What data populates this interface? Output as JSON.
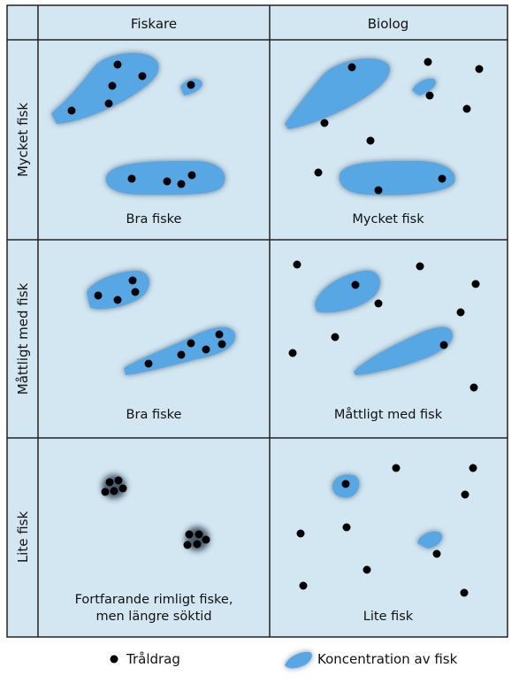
{
  "columns": [
    "Fiskare",
    "Biolog"
  ],
  "rows": [
    "Mycket fisk",
    "Måttligt med fisk",
    "Lite fisk"
  ],
  "captions": {
    "r0c0": [
      "Bra fiske"
    ],
    "r0c1": [
      "Mycket fisk"
    ],
    "r1c0": [
      "Bra fiske"
    ],
    "r1c1": [
      "Måttligt med fisk"
    ],
    "r2c0": [
      "Fortfarande rimligt fiske,",
      "men längre söktid"
    ],
    "r2c1": [
      "Lite fisk"
    ]
  },
  "legend": {
    "haul": "Tråldrag",
    "concentration": "Koncentration av fisk"
  },
  "colors": {
    "cell_bg": "#d3e7f2",
    "fish": "#57a7e4",
    "haul_dot": "#000000",
    "grid": "#222222"
  }
}
